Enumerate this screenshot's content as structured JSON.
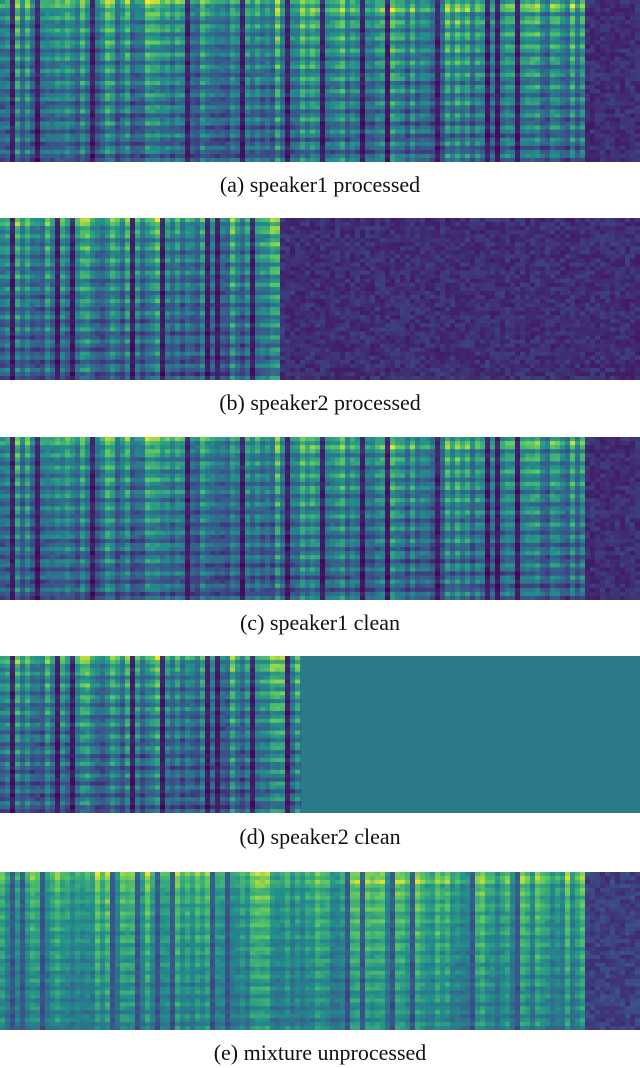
{
  "figure": {
    "panels": [
      {
        "id": "a",
        "caption": "(a) speaker1 processed",
        "content": "speech",
        "seed": 11,
        "silence_start": 0.91,
        "active_until": 1.0,
        "energy": 0.85,
        "mix": false
      },
      {
        "id": "b",
        "caption": "(b) speaker2 processed",
        "content": "speech",
        "seed": 23,
        "silence_start": 0.43,
        "active_until": 0.43,
        "energy": 0.8,
        "mix": false
      },
      {
        "id": "c",
        "caption": "(c) speaker1 clean",
        "content": "speech",
        "seed": 11,
        "silence_start": 0.91,
        "active_until": 1.0,
        "energy": 0.8,
        "mix": false
      },
      {
        "id": "d",
        "caption": "(d) speaker2 clean",
        "content": "speech-then-constant",
        "seed": 23,
        "silence_start": 0.47,
        "active_until": 0.47,
        "energy": 0.8,
        "mix": false,
        "pad_color": "#2a7a8c"
      },
      {
        "id": "e",
        "caption": "(e) mixture unprocessed",
        "content": "mixture",
        "seed": 37,
        "silence_start": 0.91,
        "active_until": 1.0,
        "energy": 0.9,
        "mix": true
      }
    ],
    "colormap": "viridis"
  }
}
